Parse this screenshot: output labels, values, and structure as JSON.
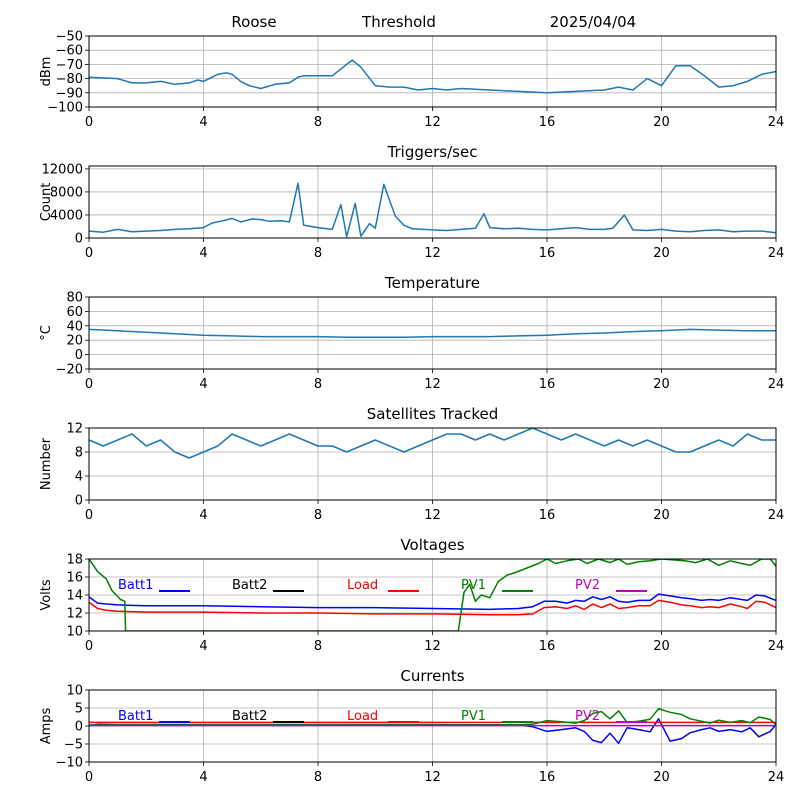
{
  "header": {
    "left": "Roose",
    "center": "Threshold",
    "right": "2025/04/04"
  },
  "chart_data": [
    {
      "type": "line",
      "title": "",
      "ylabel": "dBm",
      "xlim": [
        0,
        24
      ],
      "xticks": [
        0,
        4,
        8,
        12,
        16,
        20,
        24
      ],
      "ylim": [
        -100,
        -50
      ],
      "yticks": [
        -50,
        -60,
        -70,
        -80,
        -90,
        -100
      ],
      "grid": true,
      "series": [
        {
          "color": "#1f77b4",
          "x": [
            0,
            1,
            1.5,
            2,
            2.5,
            3,
            3.5,
            3.8,
            4,
            4.5,
            4.8,
            5,
            5.3,
            5.6,
            6,
            6.5,
            7,
            7.3,
            7.5,
            8,
            8.5,
            9,
            9.2,
            9.5,
            10,
            10.5,
            11,
            11.5,
            12,
            12.5,
            13,
            14,
            15,
            16,
            17,
            18,
            18.5,
            19,
            19.5,
            20,
            20.5,
            21,
            21.5,
            22,
            22.5,
            23,
            23.5,
            24
          ],
          "y": [
            -79,
            -80,
            -83,
            -83,
            -82,
            -84,
            -83,
            -81,
            -82,
            -77,
            -76,
            -77,
            -82,
            -85,
            -87,
            -84,
            -83,
            -79,
            -78,
            -78,
            -78,
            -70,
            -67,
            -72,
            -85,
            -86,
            -86,
            -88,
            -87,
            -88,
            -87,
            -88,
            -89,
            -90,
            -89,
            -88,
            -86,
            -88,
            -80,
            -85,
            -71,
            -71,
            -78,
            -86,
            -85,
            -82,
            -77,
            -75
          ]
        }
      ]
    },
    {
      "type": "line",
      "title": "Triggers/sec",
      "ylabel": "Count",
      "xlim": [
        0,
        24
      ],
      "xticks": [
        0,
        4,
        8,
        12,
        16,
        20,
        24
      ],
      "ylim": [
        0,
        12500
      ],
      "yticks": [
        0,
        4000,
        8000,
        12000
      ],
      "grid": true,
      "series": [
        {
          "color": "#1f77b4",
          "x": [
            0,
            0.5,
            1,
            1.5,
            2,
            2.5,
            3,
            3.5,
            4,
            4.3,
            4.7,
            5,
            5.3,
            5.7,
            6,
            6.3,
            6.7,
            7,
            7.3,
            7.5,
            8,
            8.5,
            8.8,
            9,
            9.3,
            9.5,
            9.8,
            10,
            10.3,
            10.7,
            11,
            11.3,
            11.7,
            12,
            12.5,
            13,
            13.5,
            13.8,
            14,
            14.5,
            15,
            15.5,
            16,
            16.5,
            17,
            17.5,
            18,
            18.3,
            18.7,
            19,
            19.5,
            20,
            20.5,
            21,
            21.5,
            22,
            22.5,
            23,
            23.5,
            24
          ],
          "y": [
            1200,
            1000,
            1500,
            1100,
            1200,
            1300,
            1500,
            1600,
            1800,
            2600,
            3000,
            3400,
            2800,
            3300,
            3200,
            2900,
            3000,
            2800,
            9500,
            2200,
            1800,
            1500,
            5800,
            200,
            6000,
            300,
            2500,
            1700,
            9300,
            3800,
            2200,
            1600,
            1500,
            1400,
            1300,
            1500,
            1700,
            4200,
            1800,
            1600,
            1700,
            1500,
            1400,
            1600,
            1800,
            1500,
            1500,
            1700,
            4000,
            1400,
            1300,
            1500,
            1200,
            1100,
            1300,
            1400,
            1100,
            1200,
            1200,
            900
          ]
        }
      ]
    },
    {
      "type": "line",
      "title": "Temperature",
      "ylabel": "°C",
      "xlim": [
        0,
        24
      ],
      "xticks": [
        0,
        4,
        8,
        12,
        16,
        20,
        24
      ],
      "ylim": [
        -20,
        80
      ],
      "yticks": [
        -20,
        0,
        20,
        40,
        60,
        80
      ],
      "grid": true,
      "series": [
        {
          "color": "#1f77b4",
          "x": [
            0,
            1,
            2,
            3,
            4,
            5,
            6,
            7,
            8,
            9,
            10,
            11,
            12,
            13,
            14,
            15,
            16,
            17,
            18,
            19,
            20,
            21,
            22,
            23,
            24
          ],
          "y": [
            35,
            33,
            31,
            29,
            27,
            26,
            25,
            25,
            25,
            24,
            24,
            24,
            25,
            25,
            25,
            26,
            27,
            29,
            30,
            32,
            33,
            35,
            34,
            33,
            33
          ]
        }
      ]
    },
    {
      "type": "line",
      "title": "Satellites Tracked",
      "ylabel": "Number",
      "xlim": [
        0,
        24
      ],
      "xticks": [
        0,
        4,
        8,
        12,
        16,
        20,
        24
      ],
      "ylim": [
        0,
        12
      ],
      "yticks": [
        0,
        4,
        8,
        12
      ],
      "grid": true,
      "series": [
        {
          "color": "#1f77b4",
          "x": [
            0,
            0.5,
            1,
            1.5,
            2,
            2.5,
            3,
            3.5,
            4,
            4.5,
            5,
            5.5,
            6,
            6.5,
            7,
            7.5,
            8,
            8.5,
            9,
            9.5,
            10,
            10.5,
            11,
            11.5,
            12,
            12.5,
            13,
            13.5,
            14,
            14.5,
            15,
            15.5,
            16,
            16.5,
            17,
            17.5,
            18,
            18.5,
            19,
            19.5,
            20,
            20.5,
            21,
            21.5,
            22,
            22.5,
            23,
            23.5,
            24
          ],
          "y": [
            10,
            9,
            10,
            11,
            9,
            10,
            8,
            7,
            8,
            9,
            11,
            10,
            9,
            10,
            11,
            10,
            9,
            9,
            8,
            9,
            10,
            9,
            8,
            9,
            10,
            11,
            11,
            10,
            11,
            10,
            11,
            12,
            11,
            10,
            11,
            10,
            9,
            10,
            9,
            10,
            9,
            8,
            8,
            9,
            10,
            9,
            11,
            10,
            10
          ]
        }
      ]
    },
    {
      "type": "line",
      "title": "Voltages",
      "ylabel": "Volts",
      "xlim": [
        0,
        24
      ],
      "xticks": [
        0,
        4,
        8,
        12,
        16,
        20,
        24
      ],
      "ylim": [
        10,
        18
      ],
      "yticks": [
        10,
        12,
        14,
        16,
        18
      ],
      "grid": true,
      "legend": "inside-top",
      "series": [
        {
          "name": "Batt1",
          "color": "#0000ff",
          "x": [
            0,
            0.3,
            0.6,
            1,
            2,
            4,
            6,
            8,
            10,
            12,
            14,
            15,
            15.5,
            15.9,
            16.3,
            16.7,
            17,
            17.3,
            17.6,
            17.9,
            18.2,
            18.5,
            18.8,
            19.2,
            19.6,
            19.9,
            20.3,
            20.7,
            21,
            21.4,
            21.7,
            22,
            22.4,
            22.8,
            23,
            23.3,
            23.6,
            24
          ],
          "y": [
            13.8,
            13.1,
            13.0,
            12.9,
            12.8,
            12.8,
            12.7,
            12.6,
            12.6,
            12.5,
            12.4,
            12.5,
            12.7,
            13.3,
            13.3,
            13.1,
            13.4,
            13.3,
            13.8,
            13.5,
            13.8,
            13.3,
            13.2,
            13.4,
            13.4,
            14.1,
            13.9,
            13.7,
            13.6,
            13.4,
            13.5,
            13.4,
            13.7,
            13.5,
            13.4,
            14.0,
            13.9,
            13.4
          ]
        },
        {
          "name": "Batt2",
          "color": "#000000",
          "x": [],
          "y": []
        },
        {
          "name": "Load",
          "color": "#ff0000",
          "x": [
            0,
            0.3,
            0.6,
            1,
            2,
            4,
            6,
            8,
            10,
            12,
            14,
            15,
            15.5,
            15.9,
            16.3,
            16.7,
            17,
            17.3,
            17.6,
            17.9,
            18.2,
            18.5,
            18.8,
            19.2,
            19.6,
            19.9,
            20.3,
            20.7,
            21,
            21.4,
            21.7,
            22,
            22.4,
            22.8,
            23,
            23.3,
            23.6,
            24
          ],
          "y": [
            13.2,
            12.5,
            12.3,
            12.2,
            12.1,
            12.1,
            12.0,
            12.0,
            11.9,
            11.9,
            11.8,
            11.8,
            11.9,
            12.6,
            12.7,
            12.5,
            12.8,
            12.4,
            13.0,
            12.6,
            13.0,
            12.5,
            12.6,
            12.8,
            12.8,
            13.4,
            13.2,
            12.9,
            12.8,
            12.6,
            12.7,
            12.6,
            13.0,
            12.7,
            12.5,
            13.3,
            13.2,
            12.6
          ]
        },
        {
          "name": "PV1",
          "color": "#008000",
          "x": [
            0,
            0.3,
            0.6,
            0.8,
            1.1,
            1.25,
            1.28,
            12.9,
            13.1,
            13.3,
            13.5,
            13.7,
            14,
            14.3,
            14.6,
            14.9,
            15.3,
            15.7,
            16,
            16.3,
            16.7,
            17.1,
            17.4,
            17.8,
            18.2,
            18.5,
            18.8,
            19.2,
            19.6,
            20,
            20.4,
            20.8,
            21.2,
            21.6,
            22,
            22.4,
            22.8,
            23.1,
            23.5,
            23.8,
            24
          ],
          "y": [
            18,
            16.6,
            15.8,
            14.5,
            13.5,
            13.3,
            10,
            10,
            14.3,
            15.2,
            13.3,
            14.0,
            13.7,
            15.5,
            16.2,
            16.5,
            17.0,
            17.5,
            18,
            17.5,
            17.8,
            18,
            17.5,
            18,
            17.6,
            18,
            17.4,
            17.7,
            17.8,
            18,
            17.9,
            17.8,
            17.6,
            18,
            17.3,
            17.8,
            17.5,
            17.3,
            18,
            18,
            17.2
          ]
        },
        {
          "name": "PV2",
          "color": "#bf00bf",
          "x": [],
          "y": []
        }
      ]
    },
    {
      "type": "line",
      "title": "Currents",
      "ylabel": "Amps",
      "xlim": [
        0,
        24
      ],
      "xticks": [
        0,
        4,
        8,
        12,
        16,
        20,
        24
      ],
      "ylim": [
        -10,
        10
      ],
      "yticks": [
        -10,
        -5,
        0,
        5,
        10
      ],
      "grid": true,
      "legend": "inside-top",
      "series": [
        {
          "name": "Batt1",
          "color": "#0000ff",
          "x": [
            0,
            0.3,
            1,
            4,
            8,
            12,
            15,
            15.5,
            16,
            16.5,
            17,
            17.3,
            17.6,
            17.9,
            18.2,
            18.5,
            18.8,
            19.2,
            19.6,
            19.9,
            20.3,
            20.7,
            21,
            21.4,
            21.7,
            22,
            22.4,
            22.8,
            23.1,
            23.4,
            23.8,
            24
          ],
          "y": [
            0,
            0.5,
            0.4,
            0.4,
            0.4,
            0.4,
            0.3,
            -0.2,
            -1.5,
            -1.0,
            -0.5,
            -1.5,
            -4.0,
            -4.6,
            -2.0,
            -4.8,
            -0.5,
            -1.0,
            -1.6,
            2.0,
            -4.2,
            -3.5,
            -1.9,
            -1.0,
            -0.5,
            -1.5,
            -1.0,
            -1.6,
            -0.5,
            -3.0,
            -1.5,
            0.4
          ]
        },
        {
          "name": "Batt2",
          "color": "#000000",
          "x": [],
          "y": []
        },
        {
          "name": "Load",
          "color": "#ff0000",
          "x": [
            0,
            4,
            8,
            12,
            16,
            20,
            24
          ],
          "y": [
            1.0,
            1.0,
            1.0,
            1.0,
            1.0,
            1.0,
            1.0
          ]
        },
        {
          "name": "PV1",
          "color": "#008000",
          "x": [
            0,
            1,
            4,
            8,
            12,
            15,
            15.5,
            16,
            16.5,
            17,
            17.3,
            17.6,
            17.9,
            18.2,
            18.5,
            18.8,
            19.2,
            19.6,
            19.9,
            20.3,
            20.7,
            21,
            21.4,
            21.7,
            22,
            22.4,
            22.8,
            23.1,
            23.4,
            23.8,
            24
          ],
          "y": [
            0.3,
            0.3,
            0.3,
            0.3,
            0.3,
            0.3,
            0.5,
            1.5,
            1.2,
            0.8,
            1.5,
            3.5,
            4.0,
            2.0,
            4.2,
            1.0,
            1.3,
            1.9,
            4.8,
            3.8,
            3.2,
            2.0,
            1.3,
            0.8,
            1.6,
            1.0,
            1.5,
            0.9,
            2.5,
            1.8,
            0.3
          ]
        },
        {
          "name": "PV2",
          "color": "#bf00bf",
          "x": [
            0,
            4,
            8,
            12,
            16,
            20,
            24
          ],
          "y": [
            0.1,
            0.1,
            0.1,
            0.1,
            0.1,
            0.1,
            0.1
          ]
        }
      ]
    }
  ]
}
